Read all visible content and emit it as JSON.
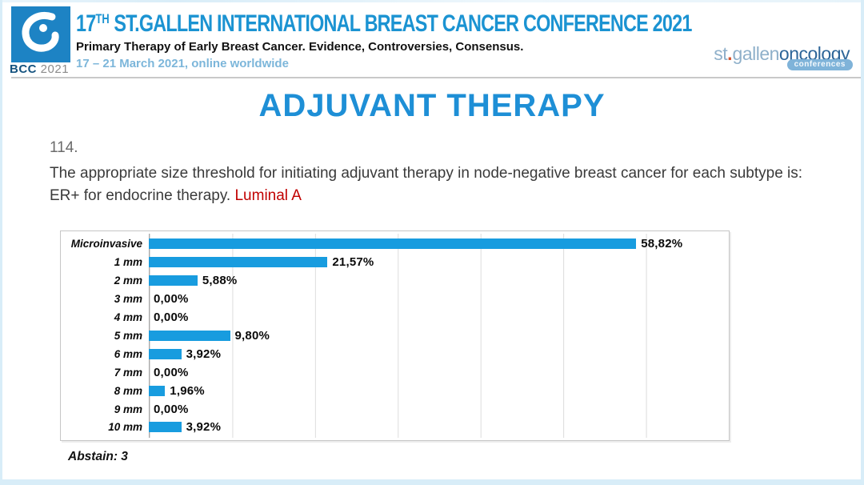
{
  "header": {
    "badge": {
      "acronym": "BCC",
      "year": "2021"
    },
    "title_number": "17",
    "title_ordinal": "TH",
    "title_rest": " ST.GALLEN INTERNATIONAL BREAST CANCER CONFERENCE 2021",
    "subtitle": "Primary Therapy of Early Breast Cancer. Evidence, Controversies, Consensus.",
    "dates": "17 – 21 March 2021, online worldwide",
    "org_logo": {
      "light": "st",
      "dot": ".",
      "light2": "gallen",
      "dark": "oncology",
      "badge": "conferences"
    }
  },
  "slide": {
    "title": "ADJUVANT THERAPY",
    "question_number": "114.",
    "question_text": "The appropriate size threshold for initiating adjuvant therapy in node-negative breast cancer for each subtype is: ER+ for endocrine therapy. ",
    "question_highlight": "Luminal A",
    "abstain_note": "Abstain: 3"
  },
  "colors": {
    "bar": "#189cdf",
    "header_blue": "#1b93d2",
    "title_blue": "#1e8fd6",
    "highlight_red": "#c10000",
    "edge_blue": "#d8edf8"
  },
  "chart_data": {
    "type": "bar",
    "orientation": "horizontal",
    "title": "",
    "xlabel": "",
    "ylabel": "",
    "categories": [
      "Microinvasive",
      "1 mm",
      "2 mm",
      "3 mm",
      "4 mm",
      "5 mm",
      "6 mm",
      "7 mm",
      "8 mm",
      "9 mm",
      "10 mm"
    ],
    "values": [
      58.82,
      21.57,
      5.88,
      0.0,
      0.0,
      9.8,
      3.92,
      0.0,
      1.96,
      0.0,
      3.92
    ],
    "value_labels": [
      "58,82%",
      "21,57%",
      "5,88%",
      "0,00%",
      "0,00%",
      "9,80%",
      "3,92%",
      "0,00%",
      "1,96%",
      "0,00%",
      "3,92%"
    ],
    "xlim": [
      0,
      70
    ],
    "gridline_interval": 10,
    "grid": true,
    "legend_position": "none"
  }
}
